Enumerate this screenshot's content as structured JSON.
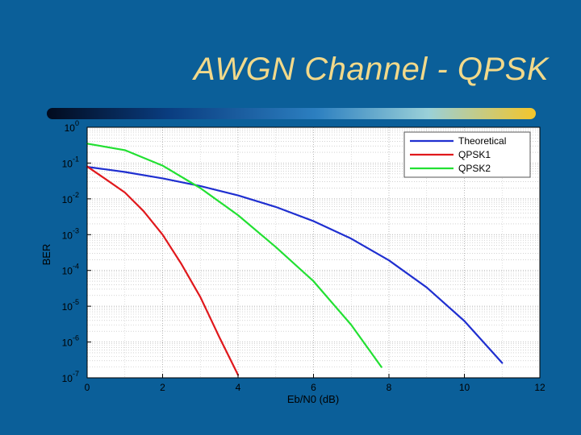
{
  "slide": {
    "title": "AWGN Channel - QPSK"
  },
  "chart_data": {
    "type": "line",
    "xlabel": "Eb/N0 (dB)",
    "ylabel": "BER",
    "xlim": [
      0,
      12
    ],
    "ylim": [
      1e-07,
      1
    ],
    "yscale": "log",
    "xticks": [
      0,
      2,
      4,
      6,
      8,
      10,
      12
    ],
    "yticks": [
      {
        "base": "10",
        "exp": "0"
      },
      {
        "base": "10",
        "exp": "-1"
      },
      {
        "base": "10",
        "exp": "-2"
      },
      {
        "base": "10",
        "exp": "-3"
      },
      {
        "base": "10",
        "exp": "-4"
      },
      {
        "base": "10",
        "exp": "-5"
      },
      {
        "base": "10",
        "exp": "-6"
      },
      {
        "base": "10",
        "exp": "-7"
      }
    ],
    "grid": true,
    "legend_position": "top-right",
    "series": [
      {
        "name": "Theoretical",
        "color": "#1f2fd0",
        "x": [
          0,
          1,
          2,
          3,
          4,
          5,
          6,
          7,
          8,
          9,
          10,
          11
        ],
        "y": [
          0.0786,
          0.0563,
          0.0375,
          0.0229,
          0.0125,
          0.00595,
          0.00239,
          0.000773,
          0.000191,
          3.36e-05,
          3.87e-06,
          2.61e-07
        ]
      },
      {
        "name": "QPSK1",
        "color": "#e0181c",
        "x": [
          0,
          0.5,
          1,
          1.5,
          2,
          2.5,
          3,
          3.5,
          4
        ],
        "y": [
          0.08,
          0.035,
          0.015,
          0.0045,
          0.001,
          0.00015,
          1.8e-05,
          1.4e-06,
          1.2e-07
        ]
      },
      {
        "name": "QPSK2",
        "color": "#22e032",
        "x": [
          0,
          1,
          2,
          3,
          4,
          5,
          6,
          7,
          7.8
        ],
        "y": [
          0.35,
          0.23,
          0.085,
          0.02,
          0.0035,
          0.00045,
          5e-05,
          3e-06,
          2e-07
        ]
      }
    ]
  }
}
